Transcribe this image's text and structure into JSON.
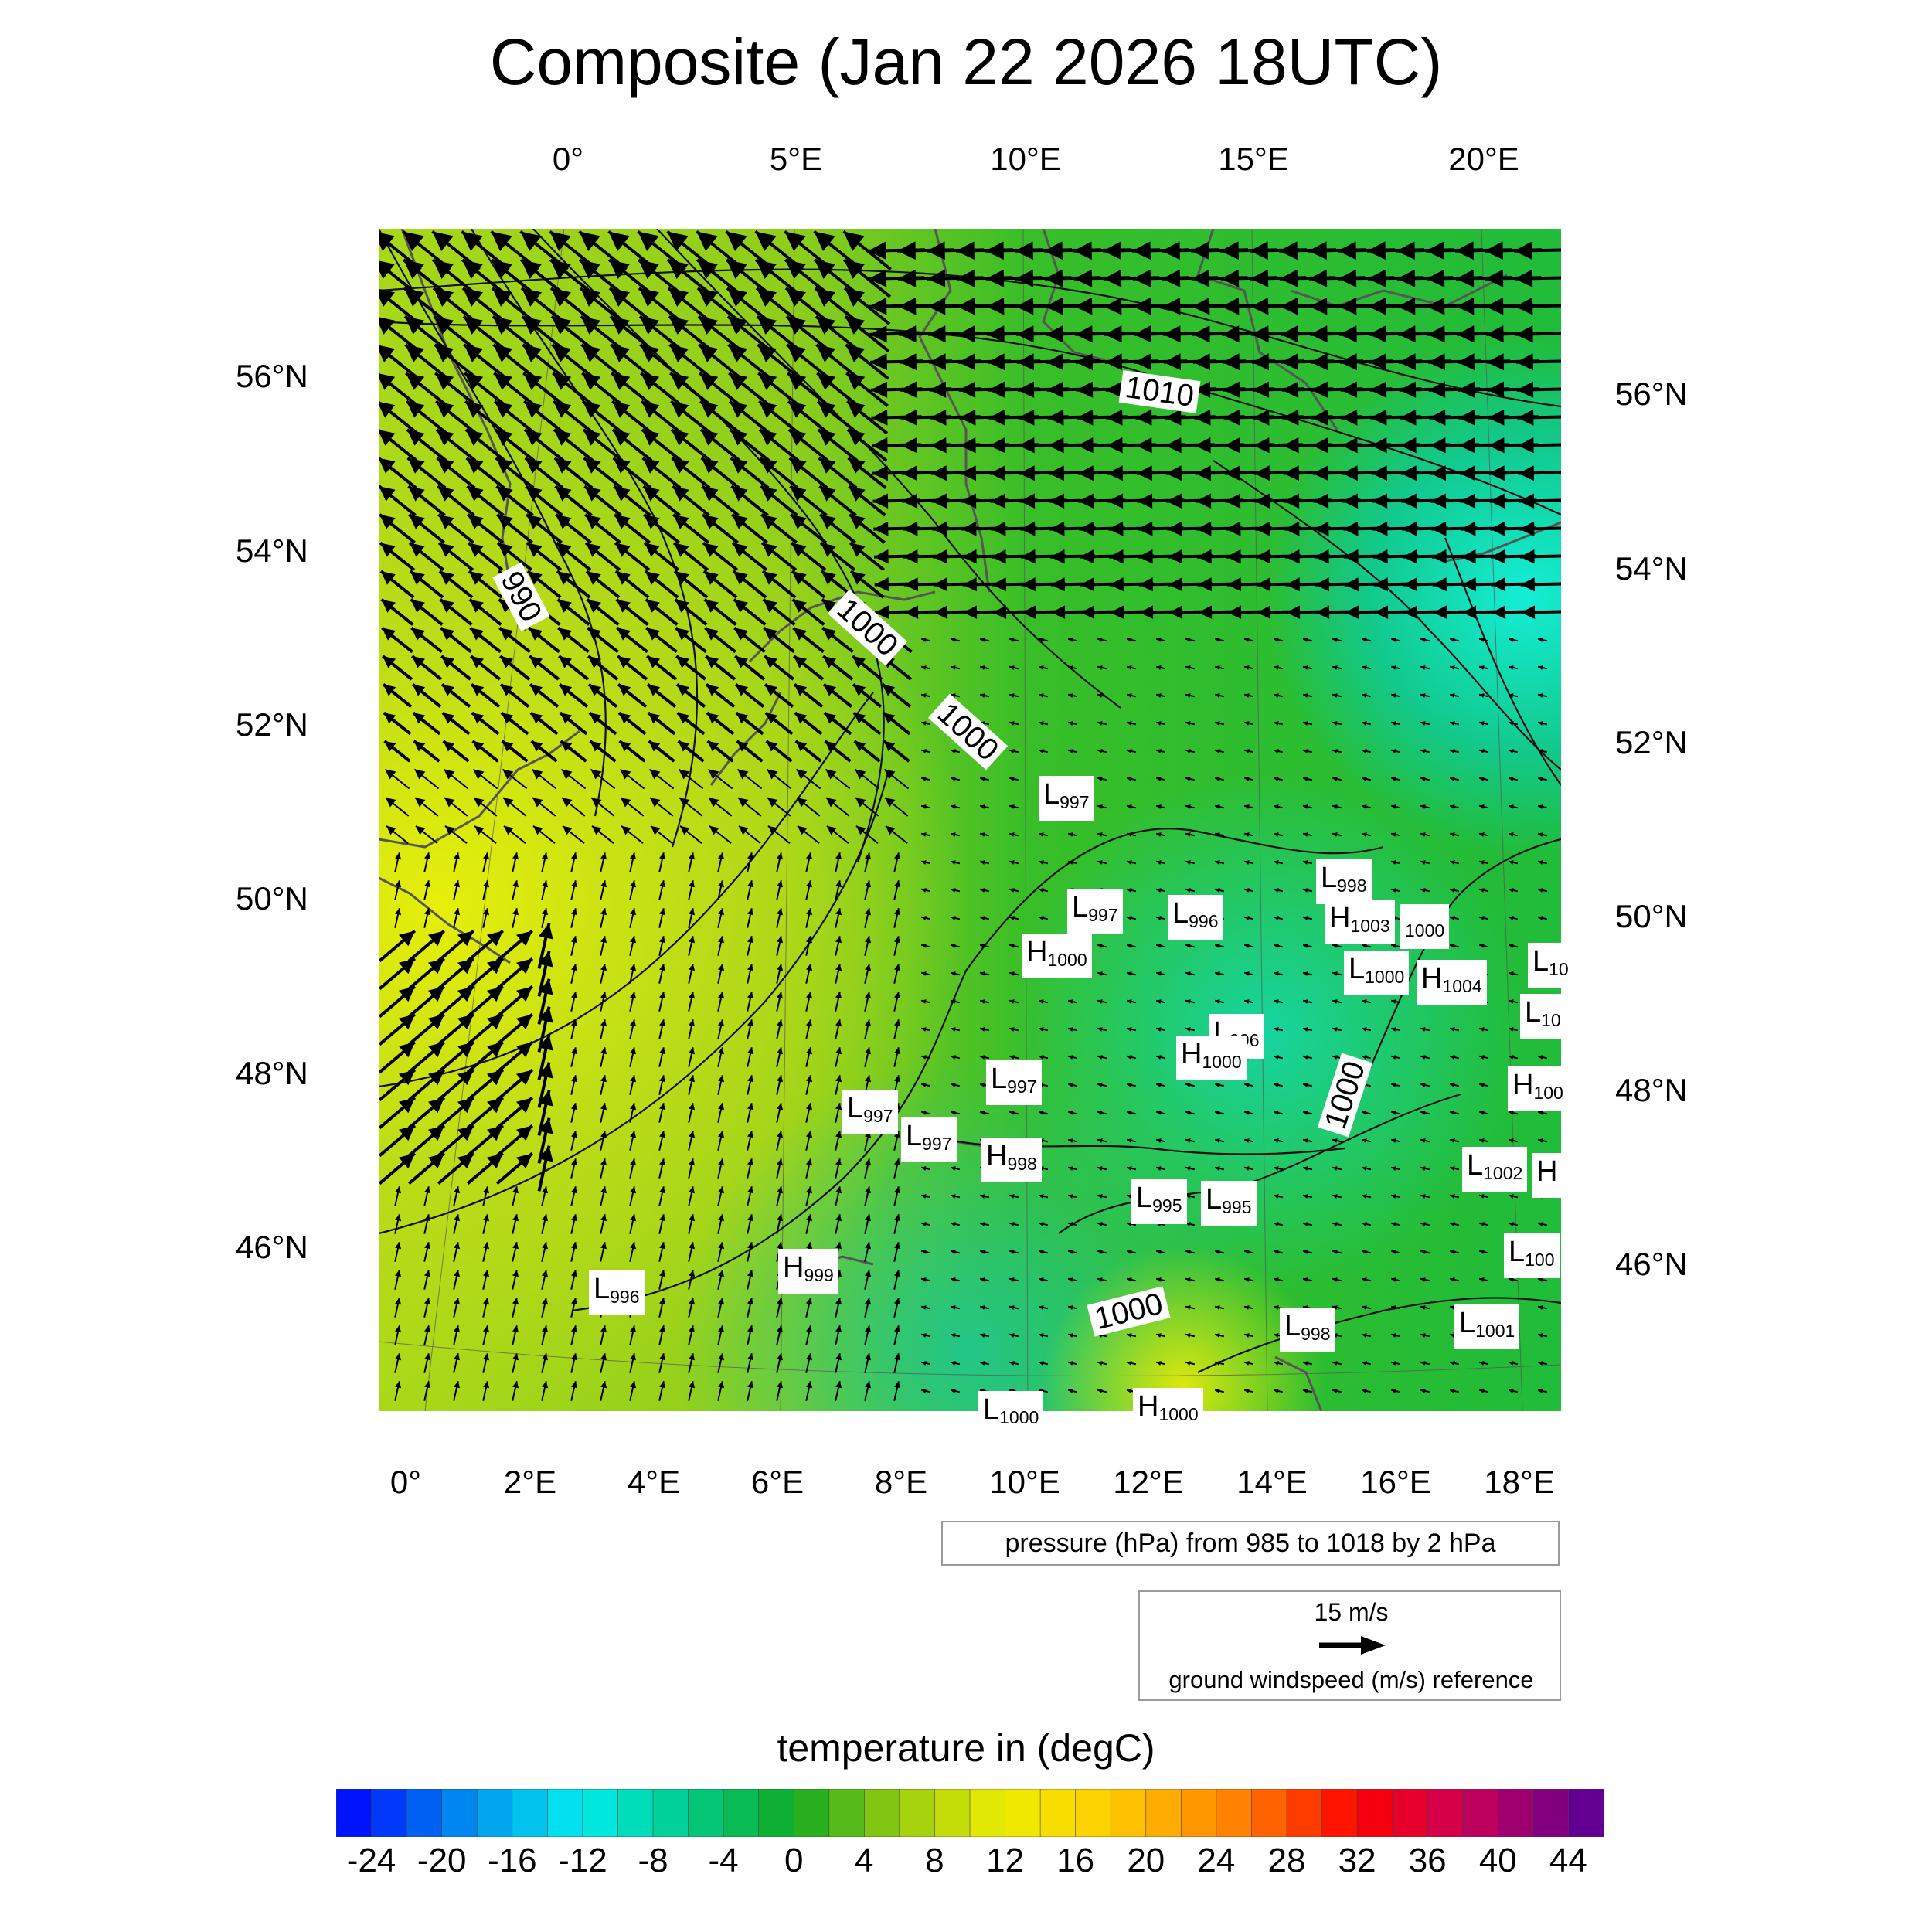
{
  "title": "Composite (Jan 22 2026 18UTC)",
  "top_lon_labels": [
    "0°",
    "5°E",
    "10°E",
    "15°E",
    "20°E"
  ],
  "bottom_lon_labels": [
    "0°",
    "2°E",
    "4°E",
    "6°E",
    "8°E",
    "10°E",
    "12°E",
    "14°E",
    "16°E",
    "18°E"
  ],
  "left_lat_labels": [
    "56°N",
    "54°N",
    "52°N",
    "50°N",
    "48°N",
    "46°N"
  ],
  "right_lat_labels": [
    "56°N",
    "54°N",
    "52°N",
    "50°N",
    "48°N",
    "46°N"
  ],
  "contour_labels": [
    "1010",
    "990",
    "1000",
    "1000",
    "1000",
    "1000"
  ],
  "pressure_centers": [
    {
      "type": "L",
      "value": "997"
    },
    {
      "type": "L",
      "value": "998"
    },
    {
      "type": "L",
      "value": "997"
    },
    {
      "type": "L",
      "value": "996"
    },
    {
      "type": "H",
      "value": "1003"
    },
    {
      "type": "",
      "value": "1000"
    },
    {
      "type": "H",
      "value": "1000"
    },
    {
      "type": "L",
      "value": "1000"
    },
    {
      "type": "H",
      "value": "1004"
    },
    {
      "type": "L",
      "value": "10"
    },
    {
      "type": "L",
      "value": "10"
    },
    {
      "type": "L",
      "value": "996"
    },
    {
      "type": "H",
      "value": "1000"
    },
    {
      "type": "L",
      "value": "997"
    },
    {
      "type": "H",
      "value": "100"
    },
    {
      "type": "L",
      "value": "997"
    },
    {
      "type": "L",
      "value": "997"
    },
    {
      "type": "H",
      "value": "998"
    },
    {
      "type": "L",
      "value": "1002"
    },
    {
      "type": "H",
      "value": ""
    },
    {
      "type": "L",
      "value": "995"
    },
    {
      "type": "L",
      "value": "995"
    },
    {
      "type": "H",
      "value": "999"
    },
    {
      "type": "L",
      "value": "100"
    },
    {
      "type": "L",
      "value": "996"
    },
    {
      "type": "L",
      "value": "998"
    },
    {
      "type": "L",
      "value": "1001"
    },
    {
      "type": "L",
      "value": "1000"
    },
    {
      "type": "H",
      "value": "1000"
    }
  ],
  "pressure_note": "pressure (hPa) from 985 to 1018 by 2 hPa",
  "wind_reference": {
    "speed_label": "15 m/s",
    "label": "ground windspeed (m/s) reference"
  },
  "colorbar": {
    "title": "temperature in (degC)",
    "tick_labels": [
      "-24",
      "-20",
      "-16",
      "-12",
      "-8",
      "-4",
      "0",
      "4",
      "8",
      "12",
      "16",
      "20",
      "24",
      "28",
      "32",
      "36",
      "40",
      "44"
    ],
    "min": -26,
    "max": 46,
    "step": 2,
    "stops": [
      {
        "v": -26,
        "color": "#0000ff"
      },
      {
        "v": -18,
        "color": "#0099ee"
      },
      {
        "v": -12,
        "color": "#00eeee"
      },
      {
        "v": -6,
        "color": "#00cc88"
      },
      {
        "v": 0,
        "color": "#11aa22"
      },
      {
        "v": 6,
        "color": "#99cc11"
      },
      {
        "v": 12,
        "color": "#eeee00"
      },
      {
        "v": 18,
        "color": "#ffcc00"
      },
      {
        "v": 26,
        "color": "#ff7700"
      },
      {
        "v": 32,
        "color": "#ff0000"
      },
      {
        "v": 38,
        "color": "#cc0055"
      },
      {
        "v": 46,
        "color": "#550099"
      }
    ]
  }
}
